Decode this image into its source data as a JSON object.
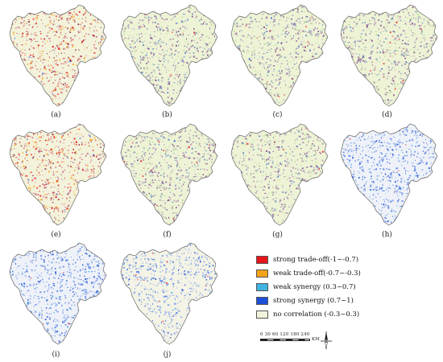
{
  "panels": [
    {
      "label": "(a)",
      "scheme": "mixed-red-orange"
    },
    {
      "label": "(b)",
      "scheme": "purple-green"
    },
    {
      "label": "(c)",
      "scheme": "purple-green"
    },
    {
      "label": "(d)",
      "scheme": "purple-green"
    },
    {
      "label": "(e)",
      "scheme": "mixed-red-orange"
    },
    {
      "label": "(f)",
      "scheme": "purple-green"
    },
    {
      "label": "(g)",
      "scheme": "purple-green"
    },
    {
      "label": "(h)",
      "scheme": "blue"
    },
    {
      "label": "(i)",
      "scheme": "blue"
    },
    {
      "label": "(j)",
      "scheme": "blue-light"
    }
  ],
  "legend": [
    {
      "label": "strong trade-off(-1~-0.7)",
      "color": "#e8141b"
    },
    {
      "label": "weak trade-off(-0.7~-0.3)",
      "color": "#f5a31a"
    },
    {
      "label": "weak synergy (0.3~0.7)",
      "color": "#3fb3e2"
    },
    {
      "label": "strong synergy (0.7~1)",
      "color": "#1f4fd8"
    },
    {
      "label": "no correlation (-0.3~0.3)",
      "color": "#f3f3dc"
    }
  ],
  "scalebar": {
    "ticks": "0 30 60 120 180 240",
    "unit": "KM"
  },
  "north_arrow": "north-arrow-icon"
}
